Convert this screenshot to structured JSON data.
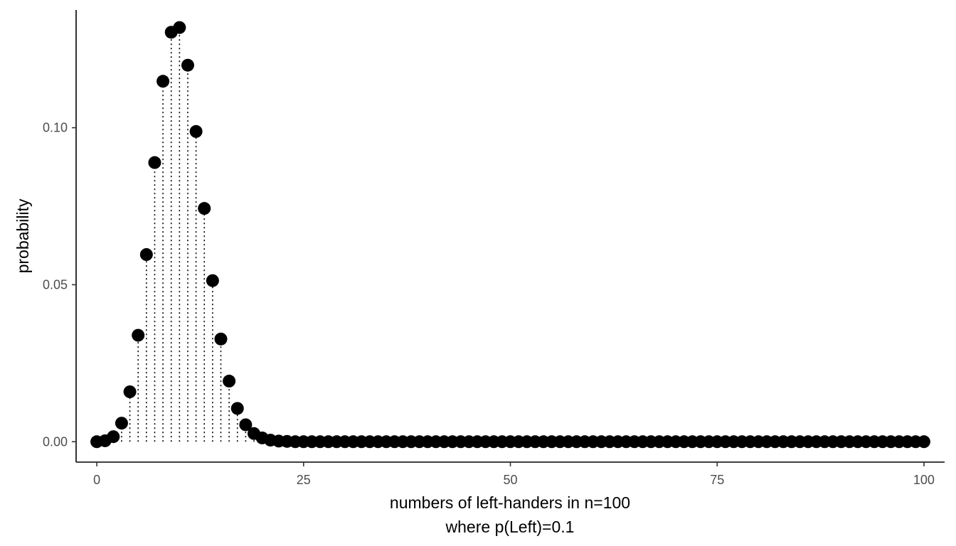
{
  "chart_data": {
    "type": "scatter",
    "title": "",
    "xlabel_lines": [
      "numbers of left-handers in n=100",
      "where p(Left)=0.1"
    ],
    "ylabel": "probability",
    "xlim": [
      -2.5,
      102.5
    ],
    "ylim": [
      -0.0065,
      0.1375
    ],
    "x_ticks": [
      0,
      25,
      50,
      75,
      100
    ],
    "x_tick_labels": [
      "0",
      "25",
      "50",
      "75",
      "100"
    ],
    "y_ticks": [
      0,
      0.05,
      0.1
    ],
    "y_tick_labels": [
      "0.00",
      "0.05",
      "0.10"
    ],
    "grid": false,
    "legend": "none",
    "point_color": "#000000",
    "stems": "dotted lines from each point down to 0",
    "x": [
      0,
      1,
      2,
      3,
      4,
      5,
      6,
      7,
      8,
      9,
      10,
      11,
      12,
      13,
      14,
      15,
      16,
      17,
      18,
      19,
      20,
      21,
      22,
      23,
      24,
      25,
      26,
      27,
      28,
      29,
      30,
      31,
      32,
      33,
      34,
      35,
      36,
      37,
      38,
      39,
      40,
      41,
      42,
      43,
      44,
      45,
      46,
      47,
      48,
      49,
      50,
      51,
      52,
      53,
      54,
      55,
      56,
      57,
      58,
      59,
      60,
      61,
      62,
      63,
      64,
      65,
      66,
      67,
      68,
      69,
      70,
      71,
      72,
      73,
      74,
      75,
      76,
      77,
      78,
      79,
      80,
      81,
      82,
      83,
      84,
      85,
      86,
      87,
      88,
      89,
      90,
      91,
      92,
      93,
      94,
      95,
      96,
      97,
      98,
      99,
      100
    ],
    "y": [
      0.0,
      0.0003,
      0.0016,
      0.0059,
      0.0159,
      0.0339,
      0.0596,
      0.0889,
      0.1148,
      0.1304,
      0.1319,
      0.1199,
      0.0988,
      0.0743,
      0.0513,
      0.0327,
      0.0193,
      0.0106,
      0.0054,
      0.0026,
      0.0012,
      0.0005,
      0.0002,
      0.0001,
      0.0,
      0.0,
      0.0,
      0.0,
      0.0,
      0.0,
      0.0,
      0.0,
      0.0,
      0.0,
      0.0,
      0.0,
      0.0,
      0.0,
      0.0,
      0.0,
      0.0,
      0.0,
      0.0,
      0.0,
      0.0,
      0.0,
      0.0,
      0.0,
      0.0,
      0.0,
      0.0,
      0.0,
      0.0,
      0.0,
      0.0,
      0.0,
      0.0,
      0.0,
      0.0,
      0.0,
      0.0,
      0.0,
      0.0,
      0.0,
      0.0,
      0.0,
      0.0,
      0.0,
      0.0,
      0.0,
      0.0,
      0.0,
      0.0,
      0.0,
      0.0,
      0.0,
      0.0,
      0.0,
      0.0,
      0.0,
      0.0,
      0.0,
      0.0,
      0.0,
      0.0,
      0.0,
      0.0,
      0.0,
      0.0,
      0.0,
      0.0,
      0.0,
      0.0,
      0.0,
      0.0,
      0.0,
      0.0,
      0.0,
      0.0,
      0.0,
      0.0
    ]
  }
}
